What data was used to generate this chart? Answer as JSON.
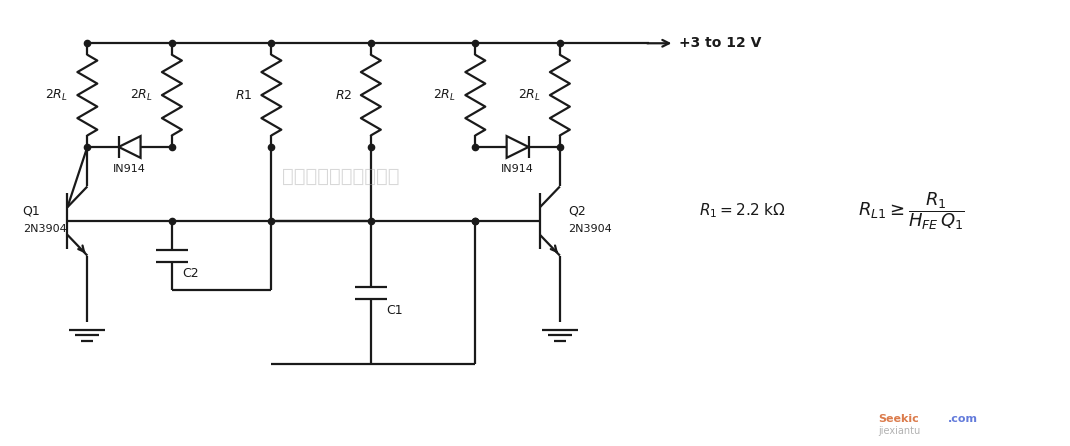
{
  "bg_color": "#ffffff",
  "line_color": "#1a1a1a",
  "lw": 1.6,
  "fig_width": 10.7,
  "fig_height": 4.46,
  "vcc_label": "+3 to 12 V",
  "resistor_labels": [
    "$2R_L$",
    "$2R_L$",
    "$R1$",
    "$R2$",
    "$2R_L$",
    "$2R_L$"
  ],
  "watermark": "杭州将睷科技有限公司"
}
